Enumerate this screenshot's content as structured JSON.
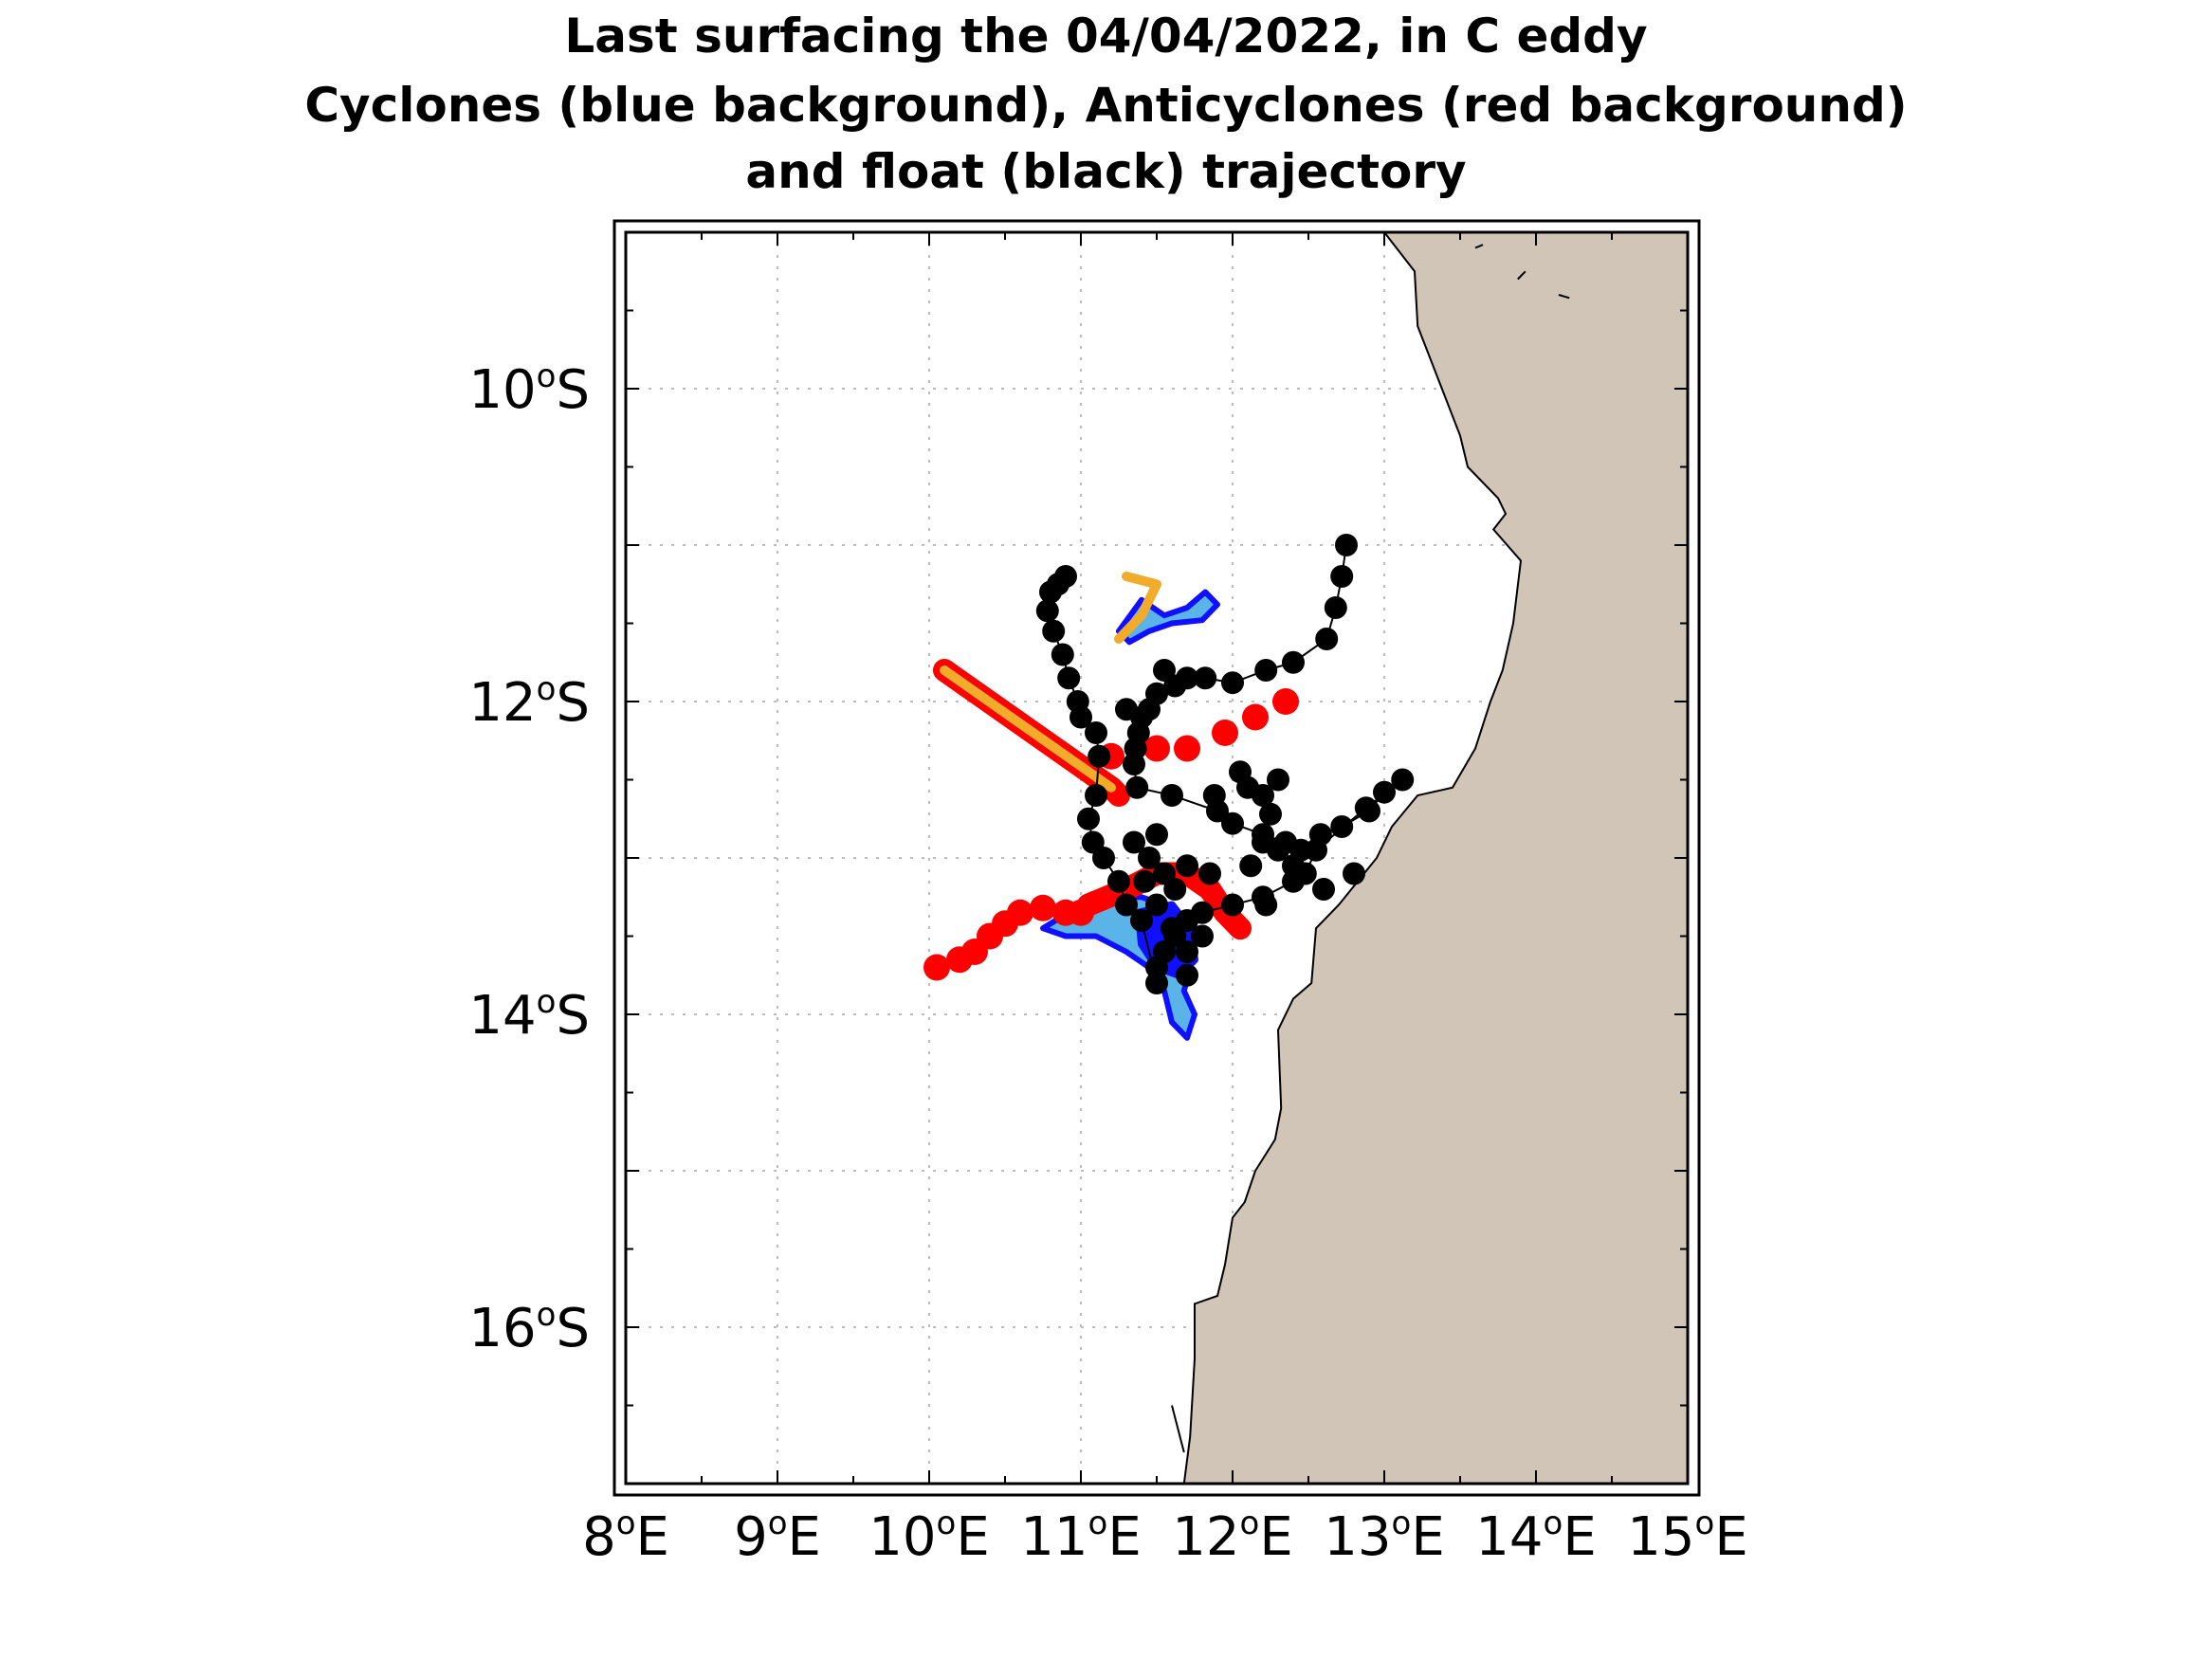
{
  "title": {
    "line1": "Last surfacing the 04/04/2022, in C eddy",
    "line2": "Cyclones (blue background), Anticyclones (red background)",
    "line3": "and float (black) trajectory"
  },
  "map": {
    "lon_range": [
      8,
      15
    ],
    "lat_range": [
      -17,
      -9
    ],
    "grid": true,
    "colors": {
      "land": "#d0c5b6",
      "coast": "#000000",
      "float": "#000000",
      "cyclone_core": "#1010ff",
      "cyclone_fill": "#5ab4e8",
      "anticyclone": "#ff0000",
      "anticyclone_fill": "#f2ac2c",
      "grid": "#bbbbbb"
    },
    "x_ticks": [
      {
        "value": 8,
        "deg": "8",
        "hemi": "E"
      },
      {
        "value": 9,
        "deg": "9",
        "hemi": "E"
      },
      {
        "value": 10,
        "deg": "10",
        "hemi": "E"
      },
      {
        "value": 11,
        "deg": "11",
        "hemi": "E"
      },
      {
        "value": 12,
        "deg": "12",
        "hemi": "E"
      },
      {
        "value": 13,
        "deg": "13",
        "hemi": "E"
      },
      {
        "value": 14,
        "deg": "14",
        "hemi": "E"
      },
      {
        "value": 15,
        "deg": "15",
        "hemi": "E"
      }
    ],
    "y_ticks": [
      {
        "value": -10,
        "deg": "10",
        "hemi": "S"
      },
      {
        "value": -12,
        "deg": "12",
        "hemi": "S"
      },
      {
        "value": -14,
        "deg": "14",
        "hemi": "S"
      },
      {
        "value": -16,
        "deg": "16",
        "hemi": "S"
      }
    ],
    "coastline": [
      [
        13.0,
        -9.0
      ],
      [
        13.2,
        -9.25
      ],
      [
        13.22,
        -9.6
      ],
      [
        13.38,
        -10.0
      ],
      [
        13.5,
        -10.3
      ],
      [
        13.55,
        -10.5
      ],
      [
        13.75,
        -10.7
      ],
      [
        13.8,
        -10.8
      ],
      [
        13.72,
        -10.9
      ],
      [
        13.9,
        -11.1
      ],
      [
        13.85,
        -11.5
      ],
      [
        13.78,
        -11.8
      ],
      [
        13.7,
        -12.0
      ],
      [
        13.6,
        -12.3
      ],
      [
        13.45,
        -12.55
      ],
      [
        13.22,
        -12.6
      ],
      [
        13.05,
        -12.8
      ],
      [
        12.95,
        -13.0
      ],
      [
        12.7,
        -13.3
      ],
      [
        12.55,
        -13.45
      ],
      [
        12.52,
        -13.8
      ],
      [
        12.4,
        -13.9
      ],
      [
        12.3,
        -14.1
      ],
      [
        12.32,
        -14.6
      ],
      [
        12.28,
        -14.8
      ],
      [
        12.15,
        -15.0
      ],
      [
        12.08,
        -15.2
      ],
      [
        12.0,
        -15.3
      ],
      [
        11.95,
        -15.6
      ],
      [
        11.9,
        -15.8
      ],
      [
        11.75,
        -15.85
      ],
      [
        11.75,
        -16.2
      ],
      [
        11.72,
        -16.7
      ],
      [
        11.68,
        -17.0
      ]
    ],
    "coast_bits": [
      [
        [
          11.6,
          -16.5
        ],
        [
          11.68,
          -16.8
        ]
      ],
      [
        [
          13.6,
          -9.1
        ],
        [
          13.65,
          -9.08
        ]
      ],
      [
        [
          13.88,
          -9.3
        ],
        [
          13.93,
          -9.25
        ]
      ],
      [
        [
          14.15,
          -9.4
        ],
        [
          14.22,
          -9.42
        ]
      ]
    ],
    "float_track": [
      [
        12.75,
        -11.0
      ],
      [
        12.72,
        -11.2
      ],
      [
        12.68,
        -11.4
      ],
      [
        12.62,
        -11.6
      ],
      [
        12.4,
        -11.75
      ],
      [
        12.22,
        -11.8
      ],
      [
        12.0,
        -11.88
      ],
      [
        11.82,
        -11.85
      ],
      [
        11.62,
        -11.9
      ],
      [
        11.5,
        -11.95
      ],
      [
        11.45,
        -12.05
      ],
      [
        11.4,
        -12.1
      ],
      [
        11.38,
        -12.2
      ],
      [
        11.36,
        -12.3
      ],
      [
        11.35,
        -12.4
      ],
      [
        11.37,
        -12.55
      ],
      [
        11.6,
        -12.6
      ],
      [
        11.9,
        -12.7
      ],
      [
        12.0,
        -12.78
      ],
      [
        12.2,
        -12.85
      ],
      [
        12.35,
        -12.9
      ],
      [
        12.45,
        -12.95
      ],
      [
        12.58,
        -12.85
      ],
      [
        12.72,
        -12.8
      ],
      [
        12.9,
        -12.7
      ],
      [
        13.0,
        -12.58
      ],
      [
        13.12,
        -12.5
      ],
      [
        12.88,
        -12.68
      ],
      [
        12.55,
        -12.95
      ],
      [
        12.48,
        -13.1
      ],
      [
        12.4,
        -13.15
      ],
      [
        12.2,
        -13.25
      ],
      [
        12.0,
        -13.3
      ],
      [
        11.8,
        -13.35
      ],
      [
        11.7,
        -13.4
      ],
      [
        11.62,
        -13.5
      ],
      [
        11.55,
        -13.6
      ],
      [
        11.5,
        -13.7
      ],
      [
        11.5,
        -13.8
      ],
      [
        11.4,
        -13.4
      ],
      [
        11.3,
        -13.3
      ],
      [
        11.25,
        -13.15
      ],
      [
        11.15,
        -13.0
      ],
      [
        11.08,
        -12.9
      ],
      [
        11.05,
        -12.75
      ],
      [
        11.1,
        -12.6
      ],
      [
        11.12,
        -12.35
      ],
      [
        11.1,
        -12.2
      ],
      [
        11.0,
        -12.1
      ],
      [
        10.98,
        -12.0
      ],
      [
        10.92,
        -11.85
      ],
      [
        10.88,
        -11.7
      ],
      [
        10.82,
        -11.55
      ],
      [
        10.78,
        -11.42
      ],
      [
        10.8,
        -11.3
      ],
      [
        10.85,
        -11.25
      ],
      [
        10.9,
        -11.2
      ]
    ],
    "float_extra": [
      [
        12.3,
        -12.5
      ],
      [
        12.2,
        -12.6
      ],
      [
        12.1,
        -12.55
      ],
      [
        12.05,
        -12.45
      ],
      [
        11.88,
        -12.6
      ],
      [
        12.25,
        -12.72
      ],
      [
        12.2,
        -12.9
      ],
      [
        12.3,
        -12.95
      ],
      [
        12.4,
        -13.05
      ],
      [
        12.22,
        -13.3
      ],
      [
        12.12,
        -13.05
      ],
      [
        11.85,
        -13.1
      ],
      [
        11.7,
        -13.05
      ],
      [
        11.55,
        -13.1
      ],
      [
        11.62,
        -13.2
      ],
      [
        11.5,
        -13.3
      ],
      [
        11.45,
        -13.0
      ],
      [
        11.5,
        -12.85
      ],
      [
        11.35,
        -12.9
      ],
      [
        11.42,
        -13.15
      ],
      [
        11.6,
        -13.45
      ],
      [
        11.7,
        -13.6
      ],
      [
        11.8,
        -13.5
      ],
      [
        11.7,
        -13.75
      ],
      [
        12.8,
        -13.1
      ],
      [
        12.6,
        -13.2
      ],
      [
        11.55,
        -11.8
      ],
      [
        11.7,
        -11.85
      ],
      [
        11.3,
        -12.05
      ]
    ],
    "anticyclone_tracks": [
      [
        [
          10.1,
          -11.8
        ],
        [
          11.2,
          -12.55
        ],
        [
          11.25,
          -12.6
        ]
      ],
      [
        [
          11.05,
          -13.3
        ],
        [
          11.3,
          -13.2
        ],
        [
          11.5,
          -13.1
        ],
        [
          11.7,
          -13.1
        ],
        [
          11.85,
          -13.2
        ],
        [
          11.95,
          -13.35
        ],
        [
          12.05,
          -13.45
        ]
      ]
    ],
    "anticyclone_fill_tracks": [
      [
        [
          10.1,
          -11.8
        ],
        [
          11.2,
          -12.55
        ]
      ],
      [
        [
          11.3,
          -11.2
        ],
        [
          11.5,
          -11.25
        ],
        [
          11.4,
          -11.45
        ],
        [
          11.25,
          -11.6
        ]
      ]
    ],
    "anticyclone_trail": [
      [
        11.2,
        -12.35
      ],
      [
        11.5,
        -12.3
      ],
      [
        11.7,
        -12.3
      ],
      [
        11.95,
        -12.2
      ],
      [
        12.15,
        -12.1
      ],
      [
        12.35,
        -12.0
      ],
      [
        10.05,
        -13.7
      ],
      [
        10.2,
        -13.65
      ],
      [
        10.3,
        -13.6
      ],
      [
        10.4,
        -13.5
      ],
      [
        10.5,
        -13.42
      ],
      [
        10.6,
        -13.35
      ],
      [
        10.75,
        -13.32
      ],
      [
        10.9,
        -13.35
      ],
      [
        11.0,
        -13.35
      ]
    ],
    "cyclone_patches": [
      [
        [
          11.25,
          -11.55
        ],
        [
          11.4,
          -11.35
        ],
        [
          11.55,
          -11.45
        ],
        [
          11.7,
          -11.4
        ],
        [
          11.82,
          -11.3
        ],
        [
          11.9,
          -11.38
        ],
        [
          11.8,
          -11.48
        ],
        [
          11.6,
          -11.5
        ],
        [
          11.45,
          -11.55
        ],
        [
          11.32,
          -11.62
        ]
      ],
      [
        [
          10.75,
          -13.45
        ],
        [
          11.0,
          -13.3
        ],
        [
          11.2,
          -13.25
        ],
        [
          11.4,
          -13.25
        ],
        [
          11.55,
          -13.3
        ],
        [
          11.65,
          -13.5
        ],
        [
          11.72,
          -13.7
        ],
        [
          11.68,
          -13.85
        ],
        [
          11.75,
          -14.0
        ],
        [
          11.7,
          -14.15
        ],
        [
          11.6,
          -14.05
        ],
        [
          11.55,
          -13.85
        ],
        [
          11.45,
          -13.7
        ],
        [
          11.3,
          -13.6
        ],
        [
          11.1,
          -13.5
        ],
        [
          10.9,
          -13.5
        ]
      ]
    ],
    "cyclone_cores": [
      [
        [
          11.38,
          -13.35
        ],
        [
          11.6,
          -13.3
        ],
        [
          11.72,
          -13.45
        ],
        [
          11.75,
          -13.65
        ],
        [
          11.65,
          -13.75
        ],
        [
          11.5,
          -13.7
        ],
        [
          11.4,
          -13.55
        ]
      ]
    ]
  }
}
